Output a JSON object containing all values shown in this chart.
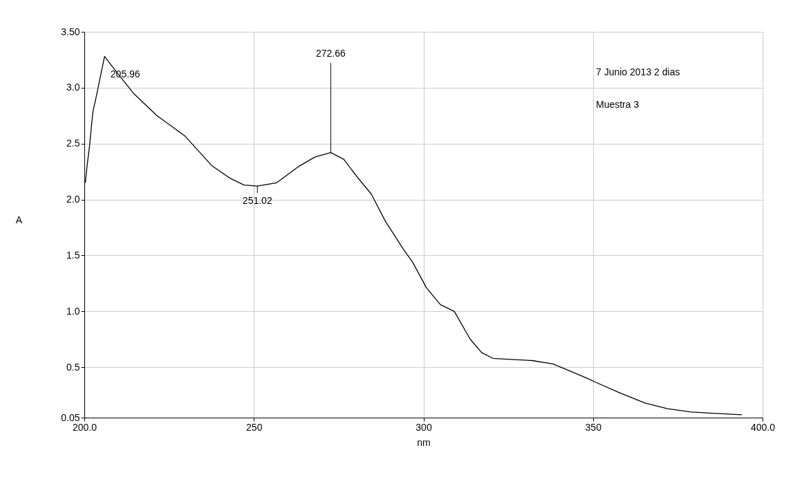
{
  "chart_data": {
    "type": "line",
    "xlabel": "nm",
    "ylabel": "A",
    "x": [
      200.3,
      200.8,
      201.5,
      202.5,
      203.5,
      205.96,
      210,
      214.5,
      221.4,
      229.6,
      237.7,
      243,
      247.1,
      251.02,
      256.7,
      263.4,
      268,
      272.66,
      276.5,
      280.5,
      284.6,
      288.7,
      294.0,
      296.8,
      300.9,
      305.0,
      309.1,
      313.8,
      317.2,
      320.5,
      326,
      332.1,
      338.2,
      343,
      348.4,
      350.5,
      358,
      365.3,
      372,
      379.0,
      385,
      393.9
    ],
    "series": [
      {
        "color": "#000000",
        "values": [
          2.15,
          2.3,
          2.47,
          2.78,
          2.92,
          3.28,
          3.12,
          2.95,
          2.75,
          2.57,
          2.3,
          2.19,
          2.13,
          2.12,
          2.15,
          2.3,
          2.38,
          2.42,
          2.36,
          2.2,
          2.05,
          1.81,
          1.56,
          1.44,
          1.21,
          1.06,
          1.0,
          0.75,
          0.63,
          0.58,
          0.57,
          0.56,
          0.53,
          0.47,
          0.4,
          0.37,
          0.27,
          0.18,
          0.13,
          0.1,
          0.09,
          0.075
        ]
      }
    ],
    "xlim": [
      200,
      400
    ],
    "ylim": [
      0.05,
      3.5
    ],
    "xticks": [
      {
        "value": 200,
        "label": "200.0"
      },
      250,
      300,
      350,
      {
        "value": 400,
        "label": "400.0"
      }
    ],
    "yticks": [
      0.05,
      {
        "value": 0.5,
        "label": "0.5"
      },
      {
        "value": 1.0,
        "label": "1.0"
      },
      {
        "value": 1.5,
        "label": "1.5"
      },
      {
        "value": 2.0,
        "label": "2.0"
      },
      {
        "value": 2.5,
        "label": "2.5"
      },
      {
        "value": 3.0,
        "label": "3.0"
      },
      {
        "value": 3.5,
        "label": "3.50"
      }
    ],
    "grid": true,
    "marker": "none",
    "line_style": "solid",
    "annotations": [
      {
        "text": "205.96",
        "x": 205.96,
        "y": 3.28
      },
      {
        "text": "272.66",
        "x": 272.66,
        "y": 2.42
      },
      {
        "text": "251.02",
        "x": 251.02,
        "y": 2.12
      },
      "7 Junio 2013 2 dias",
      "Muestra 3"
    ]
  }
}
